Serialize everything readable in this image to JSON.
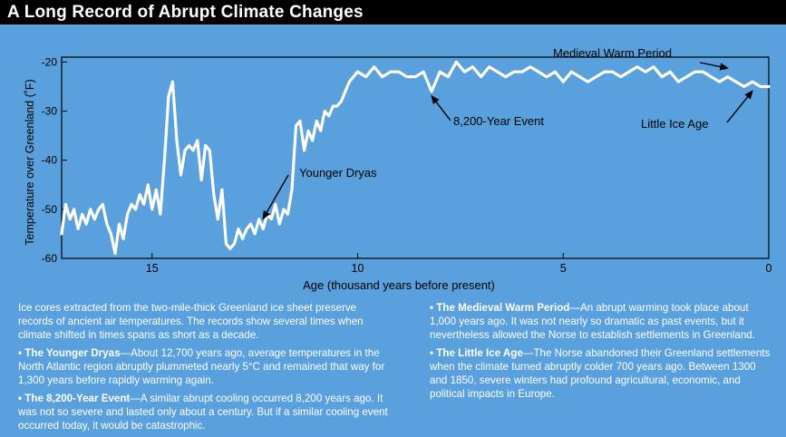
{
  "title": "A Long Record of Abrupt Climate Changes",
  "chart_data": {
    "type": "line",
    "xlabel": "Age (thousand years before present)",
    "ylabel": "Temperature over Greenland (˚F)",
    "x_reversed": true,
    "xlim": [
      17.2,
      0
    ],
    "ylim": [
      -60,
      -19
    ],
    "xticks": [
      15,
      10,
      5,
      0
    ],
    "yticks": [
      -20,
      -30,
      -40,
      -50,
      -60
    ],
    "series": [
      {
        "x": [
          17.2,
          17.1,
          17.0,
          16.9,
          16.8,
          16.7,
          16.6,
          16.5,
          16.4,
          16.3,
          16.2,
          16.1,
          16.0,
          15.9,
          15.8,
          15.7,
          15.6,
          15.5,
          15.4,
          15.3,
          15.2,
          15.1,
          15.0,
          14.9,
          14.8,
          14.7,
          14.6,
          14.5,
          14.4,
          14.3,
          14.2,
          14.1,
          14.0,
          13.9,
          13.8,
          13.7,
          13.6,
          13.5,
          13.4,
          13.3,
          13.2,
          13.1,
          13.0,
          12.9,
          12.8,
          12.7,
          12.6,
          12.5,
          12.4,
          12.3,
          12.2,
          12.1,
          12.0,
          11.9,
          11.8,
          11.7,
          11.6,
          11.5,
          11.4,
          11.3,
          11.2,
          11.1,
          11.0,
          10.9,
          10.8,
          10.7,
          10.6,
          10.5,
          10.4,
          10.3,
          10.2,
          10.0,
          9.8,
          9.6,
          9.4,
          9.2,
          9.0,
          8.8,
          8.6,
          8.4,
          8.2,
          8.0,
          7.8,
          7.6,
          7.4,
          7.2,
          7.0,
          6.8,
          6.6,
          6.4,
          6.2,
          6.0,
          5.8,
          5.6,
          5.4,
          5.2,
          5.0,
          4.8,
          4.6,
          4.4,
          4.2,
          4.0,
          3.8,
          3.6,
          3.4,
          3.2,
          3.0,
          2.8,
          2.6,
          2.4,
          2.2,
          2.0,
          1.8,
          1.6,
          1.4,
          1.2,
          1.0,
          0.8,
          0.6,
          0.4,
          0.2,
          0.0
        ],
        "y": [
          -55,
          -49,
          -52,
          -50,
          -54,
          -51,
          -53,
          -50,
          -52,
          -50,
          -49,
          -53,
          -55,
          -59,
          -53,
          -56,
          -51,
          -49,
          -50,
          -47,
          -49,
          -45,
          -50,
          -46,
          -51,
          -40,
          -27,
          -24,
          -36,
          -43,
          -38,
          -37,
          -38,
          -36,
          -44,
          -37,
          -38,
          -47,
          -52,
          -46,
          -57,
          -58,
          -57,
          -54,
          -56,
          -54,
          -53,
          -55,
          -52,
          -54,
          -51,
          -52,
          -49,
          -53,
          -50,
          -51,
          -46,
          -33,
          -32,
          -38,
          -34,
          -36,
          -32,
          -34,
          -30,
          -31,
          -29,
          -29,
          -28,
          -26,
          -24,
          -22,
          -23,
          -21,
          -23,
          -22,
          -22,
          -23,
          -23,
          -22,
          -26,
          -22,
          -23,
          -20,
          -22,
          -21,
          -23,
          -21,
          -22,
          -23,
          -22,
          -22,
          -21,
          -22,
          -23,
          -22,
          -24,
          -22,
          -23,
          -24,
          -23,
          -22,
          -22,
          -23,
          -22,
          -21,
          -22,
          -21,
          -23,
          -22,
          -24,
          -23,
          -22,
          -22,
          -23,
          -24,
          -23,
          -24,
          -25,
          -24,
          -25,
          -25
        ]
      }
    ],
    "annotations": [
      {
        "text": "Younger Dryas",
        "x": 12.3,
        "y": -51
      },
      {
        "text": "8,200-Year Event",
        "x": 8.2,
        "y": -26
      },
      {
        "text": "Medieval Warm Period",
        "x": 1.0,
        "y": -22
      },
      {
        "text": "Little Ice Age",
        "x": 0.4,
        "y": -25
      }
    ]
  },
  "text": {
    "intro": "Ice cores extracted from the two-mile-thick Greenland ice sheet preserve records of ancient air temperatures. The records show several times when climate shifted in times spans as short as a decade.",
    "yd_head": "• The Younger Dryas",
    "yd_body": "—About 12,700 years ago, average temperatures in the North Atlantic region abruptly plummeted nearly 5°C and remained that way for 1,300 years before rapidly warming again.",
    "ev_head": "• The 8,200-Year Event",
    "ev_body": "—A similar abrupt cooling occurred 8,200 years ago. It was not so severe and lasted only about a century. But if a similar cooling event occurred today, it would be catastrophic.",
    "mw_head": "• The Medieval Warm Period",
    "mw_body": "—An abrupt warming took place about 1,000 years ago. It was not nearly so dramatic as past events, but it nevertheless allowed the Norse to establish settlements in Greenland.",
    "li_head": "• The Little Ice Age",
    "li_body": "—The Norse abandoned their Greenland settlements when the climate turned abruptly colder 700 years ago. Between 1300 and 1850, severe winters had profound agricultural, economic, and political impacts in Europe."
  }
}
